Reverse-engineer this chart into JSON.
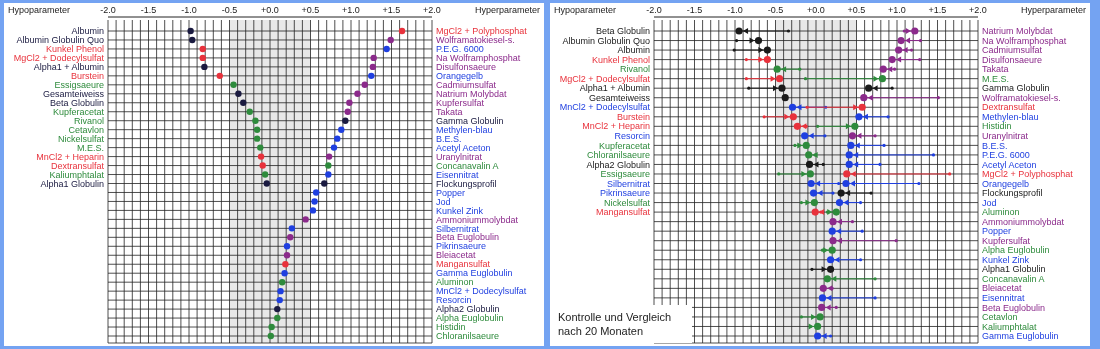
{
  "chart_data": [
    {
      "type": "scatter",
      "orientation": "horizontal",
      "ylabel": "Hypoparameter",
      "y2label": "Hyperparameter",
      "marker": "circle",
      "grid": true,
      "xlim": [
        -2,
        2
      ],
      "xticks": [
        {
          "value": -2.0,
          "label": "-2.0"
        },
        {
          "value": -1.9,
          "label": null
        },
        {
          "value": -1.8,
          "label": null
        },
        {
          "value": -1.7,
          "label": null
        },
        {
          "value": -1.6,
          "label": null
        },
        {
          "value": -1.5,
          "label": "-1.5"
        },
        {
          "value": -1.4,
          "label": null
        },
        {
          "value": -1.3,
          "label": null
        },
        {
          "value": -1.2,
          "label": null
        },
        {
          "value": -1.1,
          "label": null
        },
        {
          "value": -1.0,
          "label": "-1.0"
        },
        {
          "value": -0.9,
          "label": null
        },
        {
          "value": -0.8,
          "label": null
        },
        {
          "value": -0.7,
          "label": null
        },
        {
          "value": -0.6,
          "label": null
        },
        {
          "value": -0.5,
          "label": "-0.5"
        },
        {
          "value": -0.4,
          "label": null
        },
        {
          "value": -0.3,
          "label": null
        },
        {
          "value": -0.2,
          "label": null
        },
        {
          "value": -0.1,
          "label": null
        },
        {
          "value": 0,
          "label": "+0.0"
        },
        {
          "value": 0.1,
          "label": null
        },
        {
          "value": 0.2,
          "label": null
        },
        {
          "value": 0.3,
          "label": null
        },
        {
          "value": 0.4,
          "label": null
        },
        {
          "value": 0.5,
          "label": "+0.5"
        },
        {
          "value": 0.6,
          "label": null
        },
        {
          "value": 0.7,
          "label": null
        },
        {
          "value": 0.8,
          "label": null
        },
        {
          "value": 0.9,
          "label": null
        },
        {
          "value": 1.0,
          "label": "+1.0"
        },
        {
          "value": 1.1,
          "label": null
        },
        {
          "value": 1.2,
          "label": null
        },
        {
          "value": 1.3,
          "label": null
        },
        {
          "value": 1.4,
          "label": null
        },
        {
          "value": 1.5,
          "label": "+1.5"
        },
        {
          "value": 1.6,
          "label": null
        },
        {
          "value": 1.7,
          "label": null
        },
        {
          "value": 1.8,
          "label": null
        },
        {
          "value": 1.9,
          "label": null
        },
        {
          "value": 2.0,
          "label": "+2.0"
        }
      ],
      "bands": [
        {
          "axis": "x",
          "from": -0.5,
          "to": 0.5,
          "color": "#e8e8e8"
        }
      ],
      "categories": [
        "Albumin",
        "Albumin Globulin Quo",
        "Kunkel Phenol",
        "MgCl2 + Dodecylsulfat",
        "Alpha1 + Albumin",
        "Burstein",
        "Essigsaeure",
        "Gesamteiweiss",
        "Beta Globulin",
        "Kupferacetat",
        "Rivanol",
        "Cetavlon",
        "Nickelsulfat",
        "M.E.S.",
        "MnCl2 + Heparin",
        "Dextransulfat",
        "Kaliumphtalat",
        "Alpha1 Globulin",
        null,
        null,
        null,
        null,
        null,
        null,
        null,
        null,
        null,
        null,
        null,
        null,
        null,
        null,
        null,
        null,
        null
      ],
      "y2_categories": [
        "MgCl2 + Polyphosphat",
        "Wolframatokiesel-s.",
        "P.E.G. 6000",
        "Na Wolframphosphat",
        "Disulfonsaeure",
        "Orangegelb",
        "Cadmiumsulfat",
        "Natrium Molybdat",
        "Kupfersulfat",
        "Takata",
        "Gamma Globulin",
        "Methylen-blau",
        "B.E.S.",
        "Acetyl Aceton",
        "Uranylnitrat",
        "Concanavalin A",
        "Eisennitrat",
        "Flockungsprofil",
        "Popper",
        "Jod",
        "Kunkel Zink",
        "Ammoniummolybdat",
        "Silbernitrat",
        "Beta Euglobulin",
        "Pikrinsaeure",
        "Bleiacetat",
        "Mangansulfat",
        "Gamma Euglobulin",
        "Aluminon",
        "MnCl2 + Dodecylsulfat",
        "Resorcin",
        "Alpha2 Globulin",
        "Alpha Euglobulin",
        "Histidin",
        "Chloranilsaeure"
      ],
      "series": [
        {
          "values": [
            -0.98,
            -0.96,
            -0.83,
            -0.83,
            -0.81,
            -0.62,
            -0.45,
            -0.39,
            -0.33,
            -0.25,
            -0.18,
            -0.16,
            -0.16,
            -0.12,
            -0.11,
            -0.09,
            -0.06,
            -0.04,
            null,
            null,
            null,
            null,
            null,
            null,
            null,
            null,
            null,
            null,
            null,
            null,
            null,
            null,
            null,
            null,
            null
          ],
          "colors": [
            "#1a1a40",
            "#1a1a40",
            "#e8323c",
            "#e8323c",
            "#1a1a40",
            "#e8323c",
            "#2e8b3c",
            "#1a1a40",
            "#1a1a40",
            "#2e8b3c",
            "#2e8b3c",
            "#2e8b3c",
            "#2e8b3c",
            "#2e8b3c",
            "#e8323c",
            "#e8323c",
            "#2e8b3c",
            "#1a1a40",
            null,
            null,
            null,
            null,
            null,
            null,
            null,
            null,
            null,
            null,
            null,
            null,
            null,
            null,
            null,
            null,
            null
          ]
        },
        {
          "values": [
            1.63,
            1.49,
            1.44,
            1.28,
            1.27,
            1.25,
            1.17,
            1.08,
            0.98,
            0.96,
            0.93,
            0.88,
            0.83,
            0.79,
            0.73,
            0.72,
            0.72,
            0.67,
            0.57,
            0.55,
            0.53,
            0.44,
            0.27,
            0.25,
            0.21,
            0.21,
            0.19,
            0.18,
            0.15,
            0.13,
            0.12,
            0.09,
            0.09,
            0.02,
            0.01
          ],
          "colors": [
            "#e8323c",
            "#8b2a8b",
            "#1f3fe0",
            "#8b2a8b",
            "#8b2a8b",
            "#1f3fe0",
            "#8b2a8b",
            "#8b2a8b",
            "#8b2a8b",
            "#8b2a8b",
            "#1a1a40",
            "#1f3fe0",
            "#1f3fe0",
            "#1f3fe0",
            "#8b2a8b",
            "#2e8b3c",
            "#1f3fe0",
            "#1a1a40",
            "#1f3fe0",
            "#1f3fe0",
            "#1f3fe0",
            "#8b2a8b",
            "#1f3fe0",
            "#8b2a8b",
            "#1f3fe0",
            "#8b2a8b",
            "#e8323c",
            "#1f3fe0",
            "#2e8b3c",
            "#1f3fe0",
            "#1f3fe0",
            "#1a1a40",
            "#2e8b3c",
            "#2e8b3c",
            "#2e8b3c"
          ]
        }
      ]
    },
    {
      "type": "scatter",
      "orientation": "horizontal",
      "ylabel": "Hypoparameter",
      "y2label": "Hyperparameter",
      "marker": "circle",
      "grid": true,
      "xlim": [
        -2,
        2
      ],
      "xticks": [
        {
          "value": -2.0,
          "label": "-2.0"
        },
        {
          "value": -1.9,
          "label": null
        },
        {
          "value": -1.8,
          "label": null
        },
        {
          "value": -1.7,
          "label": null
        },
        {
          "value": -1.6,
          "label": null
        },
        {
          "value": -1.5,
          "label": "-1.5"
        },
        {
          "value": -1.4,
          "label": null
        },
        {
          "value": -1.3,
          "label": null
        },
        {
          "value": -1.2,
          "label": null
        },
        {
          "value": -1.1,
          "label": null
        },
        {
          "value": -1.0,
          "label": "-1.0"
        },
        {
          "value": -0.9,
          "label": null
        },
        {
          "value": -0.8,
          "label": null
        },
        {
          "value": -0.7,
          "label": null
        },
        {
          "value": -0.6,
          "label": null
        },
        {
          "value": -0.5,
          "label": "-0.5"
        },
        {
          "value": -0.4,
          "label": null
        },
        {
          "value": -0.3,
          "label": null
        },
        {
          "value": -0.2,
          "label": null
        },
        {
          "value": -0.1,
          "label": null
        },
        {
          "value": 0,
          "label": "+0.0"
        },
        {
          "value": 0.1,
          "label": null
        },
        {
          "value": 0.2,
          "label": null
        },
        {
          "value": 0.3,
          "label": null
        },
        {
          "value": 0.4,
          "label": null
        },
        {
          "value": 0.5,
          "label": "+0.5"
        },
        {
          "value": 0.6,
          "label": null
        },
        {
          "value": 0.7,
          "label": null
        },
        {
          "value": 0.8,
          "label": null
        },
        {
          "value": 0.9,
          "label": null
        },
        {
          "value": 1.0,
          "label": "+1.0"
        },
        {
          "value": 1.1,
          "label": null
        },
        {
          "value": 1.2,
          "label": null
        },
        {
          "value": 1.3,
          "label": null
        },
        {
          "value": 1.4,
          "label": null
        },
        {
          "value": 1.5,
          "label": "+1.5"
        },
        {
          "value": 1.6,
          "label": null
        },
        {
          "value": 1.7,
          "label": null
        },
        {
          "value": 1.8,
          "label": null
        },
        {
          "value": 1.9,
          "label": null
        },
        {
          "value": 2.0,
          "label": "+2.0"
        }
      ],
      "bands": [
        {
          "axis": "x",
          "from": -0.5,
          "to": 0.5,
          "color": "#e8e8e8"
        }
      ],
      "annotations": [
        "Kontrolle und Vergleich nach 20 Monaten"
      ],
      "categories": [
        "Beta Globulin",
        "Albumin Globulin Quo",
        "Albumin",
        "Kunkel Phenol",
        "Rivanol",
        "MgCl2 + Dodecylsulfat",
        "Alpha1 + Albumin",
        "Gesamteiweiss",
        "MnCl2 + Dodecylsulfat",
        "Burstein",
        "MnCl2 + Heparin",
        "Resorcin",
        "Kupferacetat",
        "Chloranilsaeure",
        "Alpha2 Globulin",
        "Essigsaeure",
        "Silbernitrat",
        "Pikrinsaeure",
        "Nickelsulfat",
        "Mangansulfat",
        null,
        null,
        null,
        null,
        null,
        null,
        null,
        null,
        null,
        null,
        null,
        null,
        null
      ],
      "y2_categories": [
        "Natrium Molybdat",
        "Na Wolframphosphat",
        "Cadmiumsulfat",
        "Disulfonsaeure",
        "Takata",
        "M.E.S.",
        "Gamma Globulin",
        "Wolframatokiesel-s.",
        "Dextransulfat",
        "Methylen-blau",
        "Histidin",
        "Uranylnitrat",
        "B.E.S.",
        "P.E.G. 6000",
        "Acetyl Aceton",
        "MgCl2 + Polyphosphat",
        "Orangegelb",
        "Flockungsprofil",
        "Jod",
        "Aluminon",
        "Ammoniummolybdat",
        "Popper",
        "Kupfersulfat",
        "Alpha Euglobulin",
        "Kunkel Zink",
        "Alpha1 Globulin",
        "Concanavalin A",
        "Bleiacetat",
        "Eisennitrat",
        "Beta Euglobulin",
        "Cetavlon",
        "Kaliumphtalat",
        "Gamma Euglobulin"
      ],
      "series": [
        {
          "values": [
            -0.95,
            -0.71,
            -0.6,
            -0.6,
            -0.48,
            -0.45,
            -0.42,
            -0.38,
            -0.29,
            -0.28,
            -0.23,
            -0.14,
            -0.12,
            -0.09,
            -0.08,
            -0.07,
            -0.06,
            -0.03,
            -0.02,
            -0.01,
            null,
            null,
            null,
            null,
            null,
            null,
            null,
            null,
            null,
            null,
            null,
            null,
            null
          ],
          "errors": [
            [
              -0.95,
              -0.34
            ],
            [
              -0.98,
              -0.71
            ],
            [
              -1.01,
              -0.6
            ],
            [
              -0.86,
              -0.6
            ],
            [
              -0.48,
              -0.2
            ],
            [
              -0.86,
              -0.45
            ],
            [
              -0.83,
              -0.42
            ],
            null,
            [
              -0.29,
              0.12
            ],
            [
              -0.64,
              -0.28
            ],
            [
              -0.23,
              -0.12
            ],
            [
              -0.14,
              0.11
            ],
            [
              -0.26,
              -0.12
            ],
            [
              -0.09,
              -0.01
            ],
            [
              -0.08,
              0.09
            ],
            [
              -0.46,
              -0.07
            ],
            [
              -0.06,
              0.28
            ],
            [
              -0.03,
              0.21
            ],
            [
              -0.18,
              -0.02
            ],
            [
              -0.01,
              0.06
            ],
            null,
            null,
            null,
            null,
            null,
            null,
            null,
            null,
            null,
            null,
            null,
            null,
            null
          ],
          "colors": [
            "#1a1a1a",
            "#1a1a1a",
            "#1a1a1a",
            "#e8323c",
            "#2e8b3c",
            "#e8323c",
            "#1a1a1a",
            "#1a1a1a",
            "#1f3fe0",
            "#e8323c",
            "#e8323c",
            "#1f3fe0",
            "#2e8b3c",
            "#2e8b3c",
            "#1a1a1a",
            "#2e8b3c",
            "#1f3fe0",
            "#1f3fe0",
            "#2e8b3c",
            "#e8323c",
            null,
            null,
            null,
            null,
            null,
            null,
            null,
            null,
            null,
            null,
            null,
            null,
            null
          ]
        },
        {
          "values": [
            1.22,
            1.05,
            1.02,
            0.94,
            0.83,
            0.82,
            0.65,
            0.59,
            0.57,
            0.53,
            0.48,
            0.45,
            0.43,
            0.41,
            0.41,
            0.38,
            0.37,
            0.31,
            0.29,
            0.25,
            0.21,
            0.2,
            0.21,
            0.2,
            0.18,
            0.18,
            0.14,
            0.09,
            0.08,
            0.07,
            0.05,
            0.02,
            0.02
          ],
          "errors": [
            [
              1.09,
              1.22
            ],
            [
              1.05,
              1.29
            ],
            [
              1.02,
              1.18
            ],
            [
              0.94,
              1.28
            ],
            [
              0.83,
              0.97
            ],
            [
              -0.13,
              0.82
            ],
            [
              0.65,
              0.94
            ],
            [
              0.59,
              1.51
            ],
            [
              -0.11,
              0.57
            ],
            [
              0.53,
              0.89
            ],
            [
              0.02,
              0.48
            ],
            [
              0.45,
              0.73
            ],
            [
              0.43,
              0.84
            ],
            [
              0.41,
              1.45
            ],
            [
              0.41,
              0.79
            ],
            [
              0.38,
              1.65
            ],
            [
              0.37,
              1.27
            ],
            [
              0.31,
              0.68
            ],
            [
              0.29,
              0.55
            ],
            [
              0.14,
              0.25
            ],
            [
              0.21,
              0.45
            ],
            [
              0.2,
              0.57
            ],
            [
              0.21,
              0.99
            ],
            [
              0.08,
              0.2
            ],
            [
              0.18,
              0.55
            ],
            [
              -0.05,
              0.18
            ],
            [
              0.14,
              0.73
            ],
            [
              0.09,
              0.2
            ],
            [
              0.08,
              0.73
            ],
            [
              0.07,
              0.25
            ],
            [
              -0.18,
              0.05
            ],
            [
              -0.07,
              0.02
            ],
            [
              0.02,
              0.18
            ]
          ],
          "colors": [
            "#8b2a8b",
            "#8b2a8b",
            "#8b2a8b",
            "#8b2a8b",
            "#8b2a8b",
            "#2e8b3c",
            "#1a1a1a",
            "#8b2a8b",
            "#e8323c",
            "#1f3fe0",
            "#2e8b3c",
            "#8b2a8b",
            "#1f3fe0",
            "#1f3fe0",
            "#1f3fe0",
            "#e8323c",
            "#1f3fe0",
            "#1a1a1a",
            "#1f3fe0",
            "#2e8b3c",
            "#8b2a8b",
            "#1f3fe0",
            "#8b2a8b",
            "#2e8b3c",
            "#1f3fe0",
            "#1a1a1a",
            "#2e8b3c",
            "#8b2a8b",
            "#1f3fe0",
            "#8b2a8b",
            "#2e8b3c",
            "#2e8b3c",
            "#1f3fe0"
          ]
        }
      ]
    }
  ]
}
